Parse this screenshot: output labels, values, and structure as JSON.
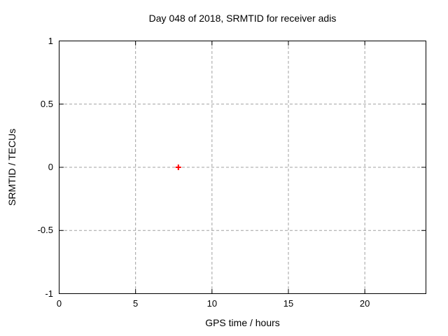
{
  "chart_data": {
    "type": "scatter",
    "title": "Day 048 of 2018, SRMTID for receiver adis",
    "xlabel": "GPS time / hours",
    "ylabel": "SRMTID / TECUs",
    "xlim": [
      0,
      24
    ],
    "ylim": [
      -1,
      1
    ],
    "xticks": [
      0,
      5,
      10,
      15,
      20
    ],
    "yticks": [
      -1,
      -0.5,
      0,
      0.5,
      1
    ],
    "grid": true,
    "grid_style": "dashed",
    "legend": "none",
    "colors": {
      "background": "#ffffff",
      "axis": "#000000",
      "grid": "#a0a0a0",
      "text": "#000000",
      "marker": "#ff0000"
    },
    "series": [
      {
        "name": "SRMTID",
        "marker": "plus",
        "color": "#ff0000",
        "points": [
          {
            "x": 7.8,
            "y": 0.0
          }
        ]
      }
    ]
  }
}
